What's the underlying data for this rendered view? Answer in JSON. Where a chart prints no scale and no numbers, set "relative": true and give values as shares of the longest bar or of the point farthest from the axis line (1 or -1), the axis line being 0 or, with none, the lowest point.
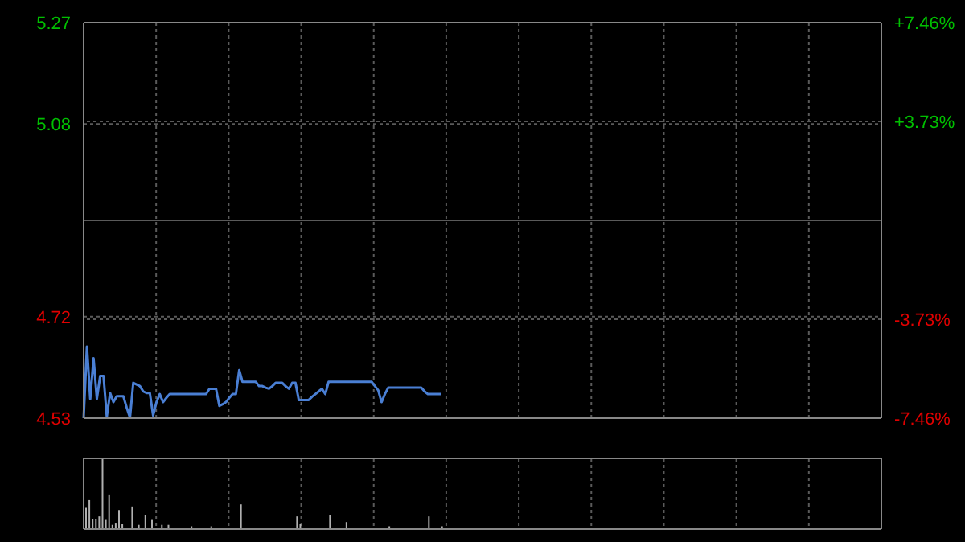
{
  "chart_data": [
    {
      "type": "line",
      "categories": [
        null,
        null,
        null,
        null,
        null,
        null,
        null,
        null,
        null,
        null,
        null,
        null,
        null,
        null,
        null,
        null,
        null,
        null,
        null,
        null,
        null,
        null,
        null,
        null,
        null,
        null,
        null,
        null,
        null,
        null,
        null,
        null,
        null,
        null,
        null,
        null,
        null,
        null,
        null,
        null,
        null,
        null,
        null,
        null,
        null,
        null,
        null,
        null,
        null,
        null,
        null,
        null,
        null,
        null,
        null,
        null,
        null,
        null,
        null,
        null,
        null,
        null,
        null,
        null,
        null,
        null,
        null,
        null,
        null,
        null,
        null,
        null,
        null,
        null,
        null,
        null,
        null,
        null,
        null,
        null,
        null,
        null,
        null,
        null,
        null,
        null,
        null,
        null,
        null,
        null,
        null,
        null,
        null,
        null,
        null,
        null,
        null,
        null,
        null,
        null,
        null,
        null,
        null,
        null,
        null,
        null,
        null,
        null,
        null,
        null,
        null,
        null,
        null,
        null,
        null,
        null,
        null,
        null,
        null,
        null,
        null,
        null,
        null,
        null,
        null,
        null,
        null,
        null,
        null,
        null,
        null,
        null,
        null,
        null,
        null,
        null,
        null,
        null,
        null,
        null,
        null,
        null,
        null,
        null,
        null,
        null,
        null,
        null,
        null,
        null,
        null,
        null,
        null,
        null,
        null,
        null,
        null,
        null,
        null,
        null,
        null,
        null,
        null,
        null,
        null,
        null,
        null,
        null,
        null,
        null,
        null,
        null,
        null,
        null,
        null,
        null,
        null,
        null,
        null,
        null,
        null,
        null,
        null,
        null,
        null,
        null,
        null,
        null,
        null,
        null,
        null,
        null,
        null,
        null,
        null,
        null,
        null,
        null,
        null,
        null,
        null,
        null,
        null,
        null,
        null,
        null,
        null,
        null,
        null,
        null,
        null,
        null,
        null,
        null,
        null,
        null,
        null,
        null,
        null,
        null,
        null,
        null,
        null,
        null,
        null,
        null,
        null,
        null,
        null,
        null,
        null,
        null,
        null,
        null,
        null,
        null,
        null,
        null,
        null,
        null,
        null,
        null
      ],
      "ylim": [
        4.53,
        5.27
      ],
      "yticks": [
        4.53,
        4.72,
        {
          "value": 4.9,
          "label": null
        },
        5.08,
        5.27
      ],
      "y2lim": [
        -7.46,
        7.46
      ],
      "y2ticks": [
        {
          "value": -7.46,
          "label": "-7.46%"
        },
        {
          "value": -3.73,
          "label": "-3.73%"
        },
        {
          "value": 0,
          "label": null
        },
        {
          "value": 3.73,
          "label": "+3.73%"
        },
        {
          "value": 7.46,
          "label": "+7.46%"
        }
      ],
      "tick_labels": "y",
      "grid": true,
      "marker": "none",
      "line_style": "solid",
      "series": [
        {
          "color": "#4a7fd4",
          "values": [
            4.53,
            4.664,
            4.566,
            4.642,
            4.566,
            4.609,
            4.609,
            4.533,
            4.577,
            4.56,
            4.571,
            4.571,
            4.571,
            4.55,
            4.531,
            4.596,
            4.593,
            4.59,
            4.58,
            4.577,
            4.577,
            4.535,
            4.56,
            4.575,
            4.56,
            4.568,
            4.575,
            4.575,
            4.575,
            4.575,
            4.575,
            4.575,
            4.575,
            4.575,
            4.575,
            4.575,
            4.575,
            4.575,
            4.585,
            4.585,
            4.585,
            4.553,
            4.556,
            4.56,
            4.568,
            4.575,
            4.575,
            4.62,
            4.598,
            4.598,
            4.598,
            4.598,
            4.598,
            4.59,
            4.59,
            4.587,
            4.585,
            4.59,
            4.596,
            4.596,
            4.596,
            4.59,
            4.585,
            4.596,
            4.596,
            4.564,
            4.564,
            4.564,
            4.564,
            4.57,
            4.575,
            4.58,
            4.585,
            4.575,
            4.598,
            4.598,
            4.598,
            4.598,
            4.598,
            4.598,
            4.598,
            4.598,
            4.598,
            4.598,
            4.598,
            4.598,
            4.598,
            4.598,
            4.59,
            4.582,
            4.56,
            4.575,
            4.587,
            4.587,
            4.587,
            4.587,
            4.587,
            4.587,
            4.587,
            4.587,
            4.587,
            4.587,
            4.587,
            4.58,
            4.575,
            4.575,
            4.575,
            4.575,
            4.575,
            null,
            null,
            null,
            null,
            null,
            null,
            null,
            null,
            null,
            null,
            null,
            null,
            null,
            null,
            null,
            null,
            null,
            null,
            null,
            null,
            null,
            null,
            null,
            null,
            null,
            null,
            null,
            null,
            null,
            null,
            null,
            null,
            null,
            null,
            null,
            null,
            null,
            null,
            null,
            null,
            null,
            null,
            null,
            null,
            null,
            null,
            null,
            null,
            null,
            null,
            null,
            null,
            null,
            null,
            null,
            null,
            null,
            null,
            null,
            null,
            null,
            null,
            null,
            null,
            null,
            null,
            null,
            null,
            null,
            null,
            null,
            null,
            null,
            null,
            null,
            null,
            null,
            null,
            null,
            null,
            null,
            null,
            null,
            null,
            null,
            null,
            null,
            null,
            null,
            null,
            null,
            null,
            null,
            null,
            null,
            null,
            null,
            null,
            null,
            null,
            null,
            null,
            null,
            null,
            null,
            null,
            null,
            null,
            null,
            null,
            null,
            null,
            null,
            null,
            null,
            null,
            null,
            null,
            null,
            null,
            null,
            null,
            null,
            null,
            null,
            null,
            null,
            null,
            null,
            null,
            null,
            null,
            null
          ]
        }
      ]
    },
    {
      "type": "bar",
      "relative": true,
      "categories": [
        null,
        null,
        null,
        null,
        null,
        null,
        null,
        null,
        null,
        null,
        null,
        null,
        null,
        null,
        null,
        null,
        null,
        null,
        null,
        null,
        null,
        null,
        null,
        null,
        null,
        null,
        null,
        null,
        null,
        null,
        null,
        null,
        null,
        null,
        null,
        null,
        null,
        null,
        null,
        null,
        null,
        null,
        null,
        null,
        null,
        null,
        null,
        null,
        null,
        null,
        null,
        null,
        null,
        null,
        null,
        null,
        null,
        null,
        null,
        null,
        null,
        null,
        null,
        null,
        null,
        null,
        null,
        null,
        null,
        null,
        null,
        null,
        null,
        null,
        null,
        null,
        null,
        null,
        null,
        null,
        null,
        null,
        null,
        null,
        null,
        null,
        null,
        null,
        null,
        null,
        null,
        null,
        null,
        null,
        null,
        null,
        null,
        null,
        null,
        null,
        null,
        null,
        null,
        null,
        null,
        null,
        null,
        null,
        null,
        null,
        null,
        null,
        null,
        null,
        null,
        null,
        null,
        null,
        null,
        null,
        null,
        null,
        null,
        null,
        null,
        null,
        null,
        null,
        null,
        null,
        null,
        null,
        null,
        null,
        null,
        null,
        null,
        null,
        null,
        null,
        null,
        null,
        null,
        null,
        null,
        null,
        null,
        null,
        null,
        null,
        null,
        null,
        null,
        null,
        null,
        null,
        null,
        null,
        null,
        null,
        null,
        null,
        null,
        null,
        null,
        null,
        null,
        null,
        null,
        null,
        null,
        null,
        null,
        null,
        null,
        null,
        null,
        null,
        null,
        null,
        null,
        null,
        null,
        null,
        null,
        null,
        null,
        null,
        null,
        null,
        null,
        null,
        null,
        null,
        null,
        null,
        null,
        null,
        null,
        null,
        null,
        null,
        null,
        null,
        null,
        null,
        null,
        null,
        null,
        null,
        null,
        null,
        null,
        null,
        null,
        null,
        null,
        null,
        null,
        null,
        null,
        null,
        null,
        null,
        null,
        null,
        null,
        null,
        null,
        null,
        null,
        null,
        null,
        null,
        null,
        null,
        null,
        null,
        null,
        null,
        null,
        null
      ],
      "tick_labels": false,
      "grid": "x",
      "series": [
        {
          "color": "#b0b0b0",
          "values": [
            0.3,
            0.41,
            0.14,
            0.14,
            0.18,
            1,
            0.13,
            0.49,
            0.06,
            0.09,
            0.27,
            0.07,
            null,
            null,
            0.32,
            null,
            0.06,
            null,
            0.2,
            null,
            0.13,
            null,
            null,
            0.06,
            null,
            0.06,
            null,
            null,
            null,
            null,
            null,
            null,
            0.04,
            null,
            null,
            null,
            null,
            null,
            0.04,
            null,
            null,
            null,
            null,
            null,
            null,
            null,
            null,
            0.35,
            null,
            null,
            null,
            null,
            null,
            null,
            null,
            null,
            null,
            null,
            null,
            null,
            null,
            null,
            null,
            null,
            0.18,
            0.07,
            null,
            null,
            null,
            null,
            null,
            null,
            null,
            null,
            0.2,
            null,
            null,
            null,
            null,
            0.1,
            null,
            null,
            null,
            null,
            null,
            null,
            null,
            null,
            null,
            null,
            null,
            null,
            0.04,
            null,
            null,
            null,
            null,
            null,
            null,
            null,
            null,
            null,
            null,
            null,
            0.18,
            null,
            null,
            null,
            0.04,
            null,
            null,
            null,
            null,
            null,
            null,
            null,
            null,
            null,
            null,
            null,
            null,
            null,
            null,
            null,
            null,
            null,
            null,
            null,
            null,
            null,
            null,
            null,
            null,
            null,
            null,
            null,
            null,
            null,
            null,
            null,
            null,
            null,
            null,
            null,
            null,
            null,
            null,
            null,
            null,
            null,
            null,
            null,
            null,
            null,
            null,
            null,
            null,
            null,
            null,
            null,
            null,
            null,
            null,
            null,
            null,
            null,
            null,
            null,
            null,
            null,
            null,
            null,
            null,
            null,
            null,
            null,
            null,
            null,
            null,
            null,
            null,
            null,
            null,
            null,
            null,
            null,
            null,
            null,
            null,
            null,
            null,
            null,
            null,
            null,
            null,
            null,
            null,
            null,
            null,
            null,
            null,
            null,
            null,
            null,
            null,
            null,
            null,
            null,
            null,
            null,
            null,
            null,
            null,
            null,
            null,
            null,
            null,
            null,
            null,
            null,
            null,
            null,
            null,
            null,
            null,
            null,
            null,
            null,
            null,
            null,
            null,
            null,
            null,
            null,
            null,
            null,
            null,
            null,
            null,
            null,
            null,
            null
          ]
        }
      ]
    }
  ]
}
